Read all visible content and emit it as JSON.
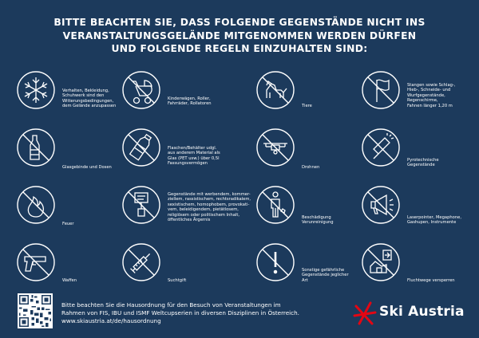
{
  "header": {
    "line1": "BITTE BEACHTEN SIE, DASS FOLGENDE GEGENSTÄNDE NICHT INS",
    "line2": "VERANSTALTUNGSGELÄNDE MITGENOMMEN WERDEN DÜRFEN",
    "line3": "UND FOLGENDE REGELN EINZUHALTEN SIND:"
  },
  "rules": {
    "weather": [
      "Verhalten, Bekleidung,",
      "Schuhwerk sind den",
      "Witterungsbedingungen,",
      "dem Gelände anzupassen"
    ],
    "strollers": [
      "Kinderwägen, Roller,",
      "Fahrräder, Rollatoren"
    ],
    "animals": [
      "Tiere"
    ],
    "poles": [
      "Stangen sowie Schlag-,",
      "Hieb-, Schneide- und",
      "Wurfgegenstände,",
      "Regenschirme,",
      "Fahnen länger 1,20 m"
    ],
    "glass": [
      "Glasgebinde und Dosen"
    ],
    "bottles": [
      "Flaschen/Behälter udgl.",
      "aus anderem Material als",
      "Glas (PET usw.) über 0,5l",
      "Fassungsvermögen"
    ],
    "drones": [
      "Drohnen"
    ],
    "pyro": [
      "Pyrotechnische",
      "Gegenstände"
    ],
    "fire": [
      "Feuer"
    ],
    "messages": [
      "Gegenstände mit werbendem, kommer-",
      "ziellem, rassistischem, rechtsradikalem,",
      "sexistischem, homophobem, provokati-",
      "vem, beleidigendem, pietätlosem,",
      "religiösem oder politischem  Inhalt,",
      "öffentliches Ärgernis"
    ],
    "littering": [
      "Beschädigung",
      "Verunreinigung"
    ],
    "laser": [
      "Laserpointer, Megaphone,",
      "Gashupen, Instrumente"
    ],
    "weapons": [
      "Waffen"
    ],
    "drugs": [
      "Suchtgift"
    ],
    "dangerous": [
      "Sonstige gefährliche",
      "Gegenstände jeglicher",
      "Art"
    ],
    "escape": [
      "Fluchtwege versperren"
    ]
  },
  "footer": {
    "line1": "Bitte beachten Sie die Hausordnung für den Besuch von Veranstaltungen im",
    "line2": "Rahmen von FIS, IBU und ISMF Weltcupserien in diversen Disziplinen in Österreich.",
    "line3": "www.skiaustria.at/de/hausordnung"
  },
  "brand": {
    "name": "Ski Austria",
    "accent": "#e30613"
  },
  "colors": {
    "background": "#1c3a5c",
    "foreground": "#ffffff"
  }
}
